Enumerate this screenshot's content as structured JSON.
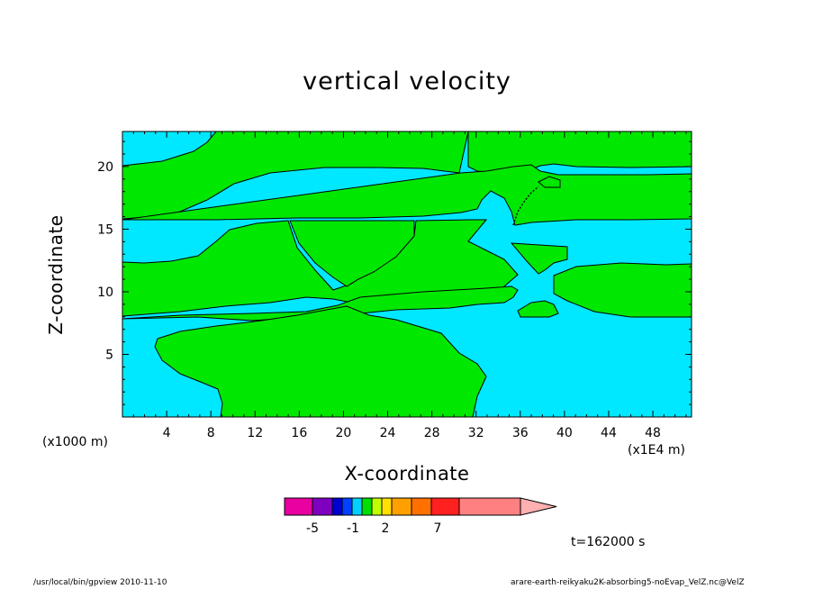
{
  "chart_data": {
    "type": "heatmap",
    "title": "vertical velocity",
    "xlabel": "X-coordinate",
    "ylabel": "Z-coordinate",
    "x_unit": "(x1000 m)",
    "x_scale_note": "(x1E4 m)",
    "time_label": "t=162000 s",
    "xlim": [
      0,
      51.5
    ],
    "ylim": [
      0,
      22.8
    ],
    "x_ticks": [
      "4",
      "8",
      "12",
      "16",
      "20",
      "24",
      "28",
      "32",
      "36",
      "40",
      "44",
      "48"
    ],
    "y_ticks": [
      "5",
      "10",
      "15",
      "20"
    ],
    "background_color": "#00e8ff",
    "fill_color": "#00e800",
    "colorbar": {
      "colors": [
        "#e800a0",
        "#8000c0",
        "#0000d0",
        "#0040ff",
        "#00d0ff",
        "#00e000",
        "#c0ff00",
        "#ffe000",
        "#ffa000",
        "#ff7000",
        "#ff2020",
        "#ff8080",
        "#ffb0b0"
      ],
      "tick_labels": [
        "-5",
        "-1",
        "2",
        "7"
      ]
    }
  },
  "footer": {
    "left": "/usr/local/bin/gpview  2010-11-10",
    "right": "arare-earth-reikyaku2K-absorbing5-noEvap_VelZ.nc@VelZ"
  }
}
